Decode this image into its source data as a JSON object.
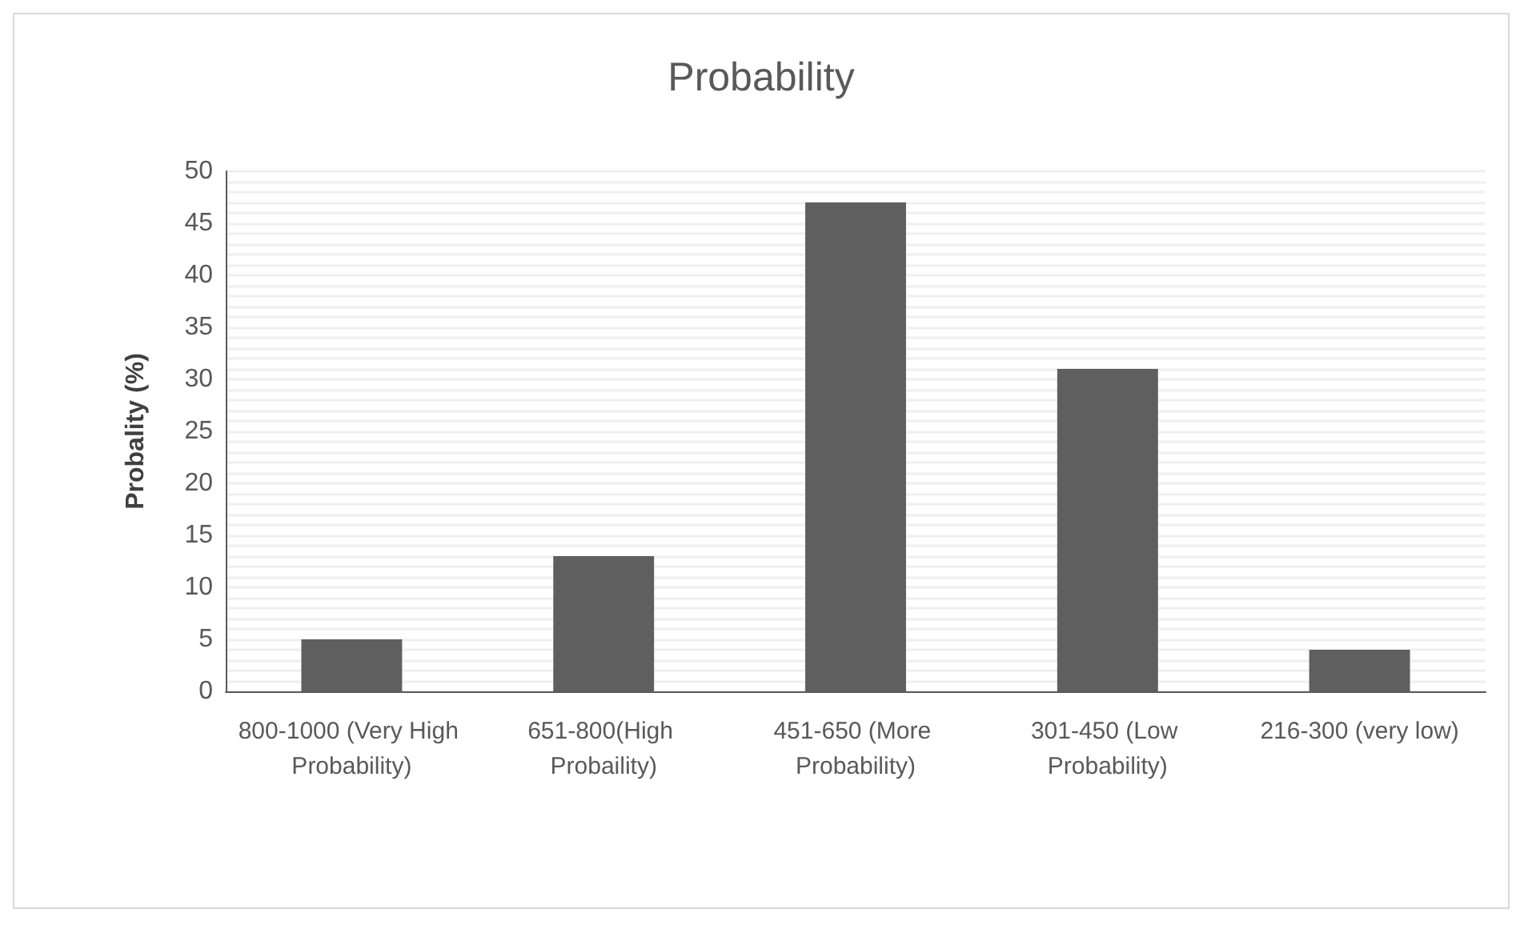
{
  "chart_data": {
    "type": "bar",
    "title": "Probability",
    "ylabel": "Probality (%)",
    "categories": [
      "800-1000 (Very High Probability)",
      "651-800(High Probaility)",
      "451-650 (More Probability)",
      "301-450 (Low Probability)",
      "216-300 (very low)"
    ],
    "values": [
      5,
      13,
      47,
      31,
      4
    ],
    "color": "#5f5f5f",
    "ylim": [
      0,
      50
    ],
    "yticks": [
      0,
      {
        "value": 1,
        "label": null
      },
      {
        "value": 2,
        "label": null
      },
      {
        "value": 3,
        "label": null
      },
      {
        "value": 4,
        "label": null
      },
      5,
      {
        "value": 6,
        "label": null
      },
      {
        "value": 7,
        "label": null
      },
      {
        "value": 8,
        "label": null
      },
      {
        "value": 9,
        "label": null
      },
      10,
      {
        "value": 11,
        "label": null
      },
      {
        "value": 12,
        "label": null
      },
      {
        "value": 13,
        "label": null
      },
      {
        "value": 14,
        "label": null
      },
      15,
      {
        "value": 16,
        "label": null
      },
      {
        "value": 17,
        "label": null
      },
      {
        "value": 18,
        "label": null
      },
      {
        "value": 19,
        "label": null
      },
      20,
      {
        "value": 21,
        "label": null
      },
      {
        "value": 22,
        "label": null
      },
      {
        "value": 23,
        "label": null
      },
      {
        "value": 24,
        "label": null
      },
      25,
      {
        "value": 26,
        "label": null
      },
      {
        "value": 27,
        "label": null
      },
      {
        "value": 28,
        "label": null
      },
      {
        "value": 29,
        "label": null
      },
      30,
      {
        "value": 31,
        "label": null
      },
      {
        "value": 32,
        "label": null
      },
      {
        "value": 33,
        "label": null
      },
      {
        "value": 34,
        "label": null
      },
      35,
      {
        "value": 36,
        "label": null
      },
      {
        "value": 37,
        "label": null
      },
      {
        "value": 38,
        "label": null
      },
      {
        "value": 39,
        "label": null
      },
      40,
      {
        "value": 41,
        "label": null
      },
      {
        "value": 42,
        "label": null
      },
      {
        "value": 43,
        "label": null
      },
      {
        "value": 44,
        "label": null
      },
      45,
      {
        "value": 46,
        "label": null
      },
      {
        "value": 47,
        "label": null
      },
      {
        "value": 48,
        "label": null
      },
      {
        "value": 49,
        "label": null
      },
      50
    ],
    "grid": "y"
  }
}
